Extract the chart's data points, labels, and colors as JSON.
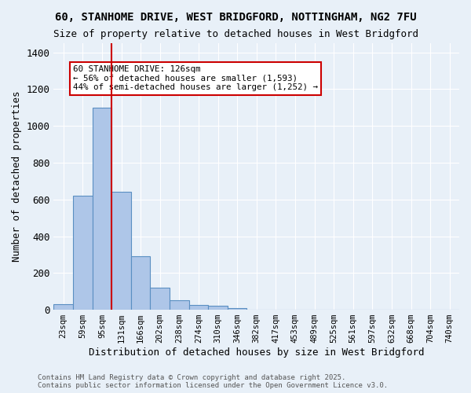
{
  "title1": "60, STANHOME DRIVE, WEST BRIDGFORD, NOTTINGHAM, NG2 7FU",
  "title2": "Size of property relative to detached houses in West Bridgford",
  "xlabel": "Distribution of detached houses by size in West Bridgford",
  "ylabel": "Number of detached properties",
  "bin_labels": [
    "23sqm",
    "59sqm",
    "95sqm",
    "131sqm",
    "166sqm",
    "202sqm",
    "238sqm",
    "274sqm",
    "310sqm",
    "346sqm",
    "382sqm",
    "417sqm",
    "453sqm",
    "489sqm",
    "525sqm",
    "561sqm",
    "597sqm",
    "632sqm",
    "668sqm",
    "704sqm",
    "740sqm"
  ],
  "bar_heights": [
    30,
    620,
    1100,
    640,
    290,
    120,
    50,
    25,
    20,
    10,
    0,
    0,
    0,
    0,
    0,
    0,
    0,
    0,
    0,
    0,
    0
  ],
  "bar_color": "#aec6e8",
  "bar_edge_color": "#5a8fc2",
  "bg_color": "#e8f0f8",
  "grid_color": "#ffffff",
  "redline_color": "#cc0000",
  "annotation_text": "60 STANHOME DRIVE: 126sqm\n← 56% of detached houses are smaller (1,593)\n44% of semi-detached houses are larger (1,252) →",
  "annotation_box_color": "#ffffff",
  "annotation_box_edge": "#cc0000",
  "footer": "Contains HM Land Registry data © Crown copyright and database right 2025.\nContains public sector information licensed under the Open Government Licence v3.0.",
  "ylim": [
    0,
    1450
  ],
  "yticks": [
    0,
    200,
    400,
    600,
    800,
    1000,
    1200,
    1400
  ]
}
